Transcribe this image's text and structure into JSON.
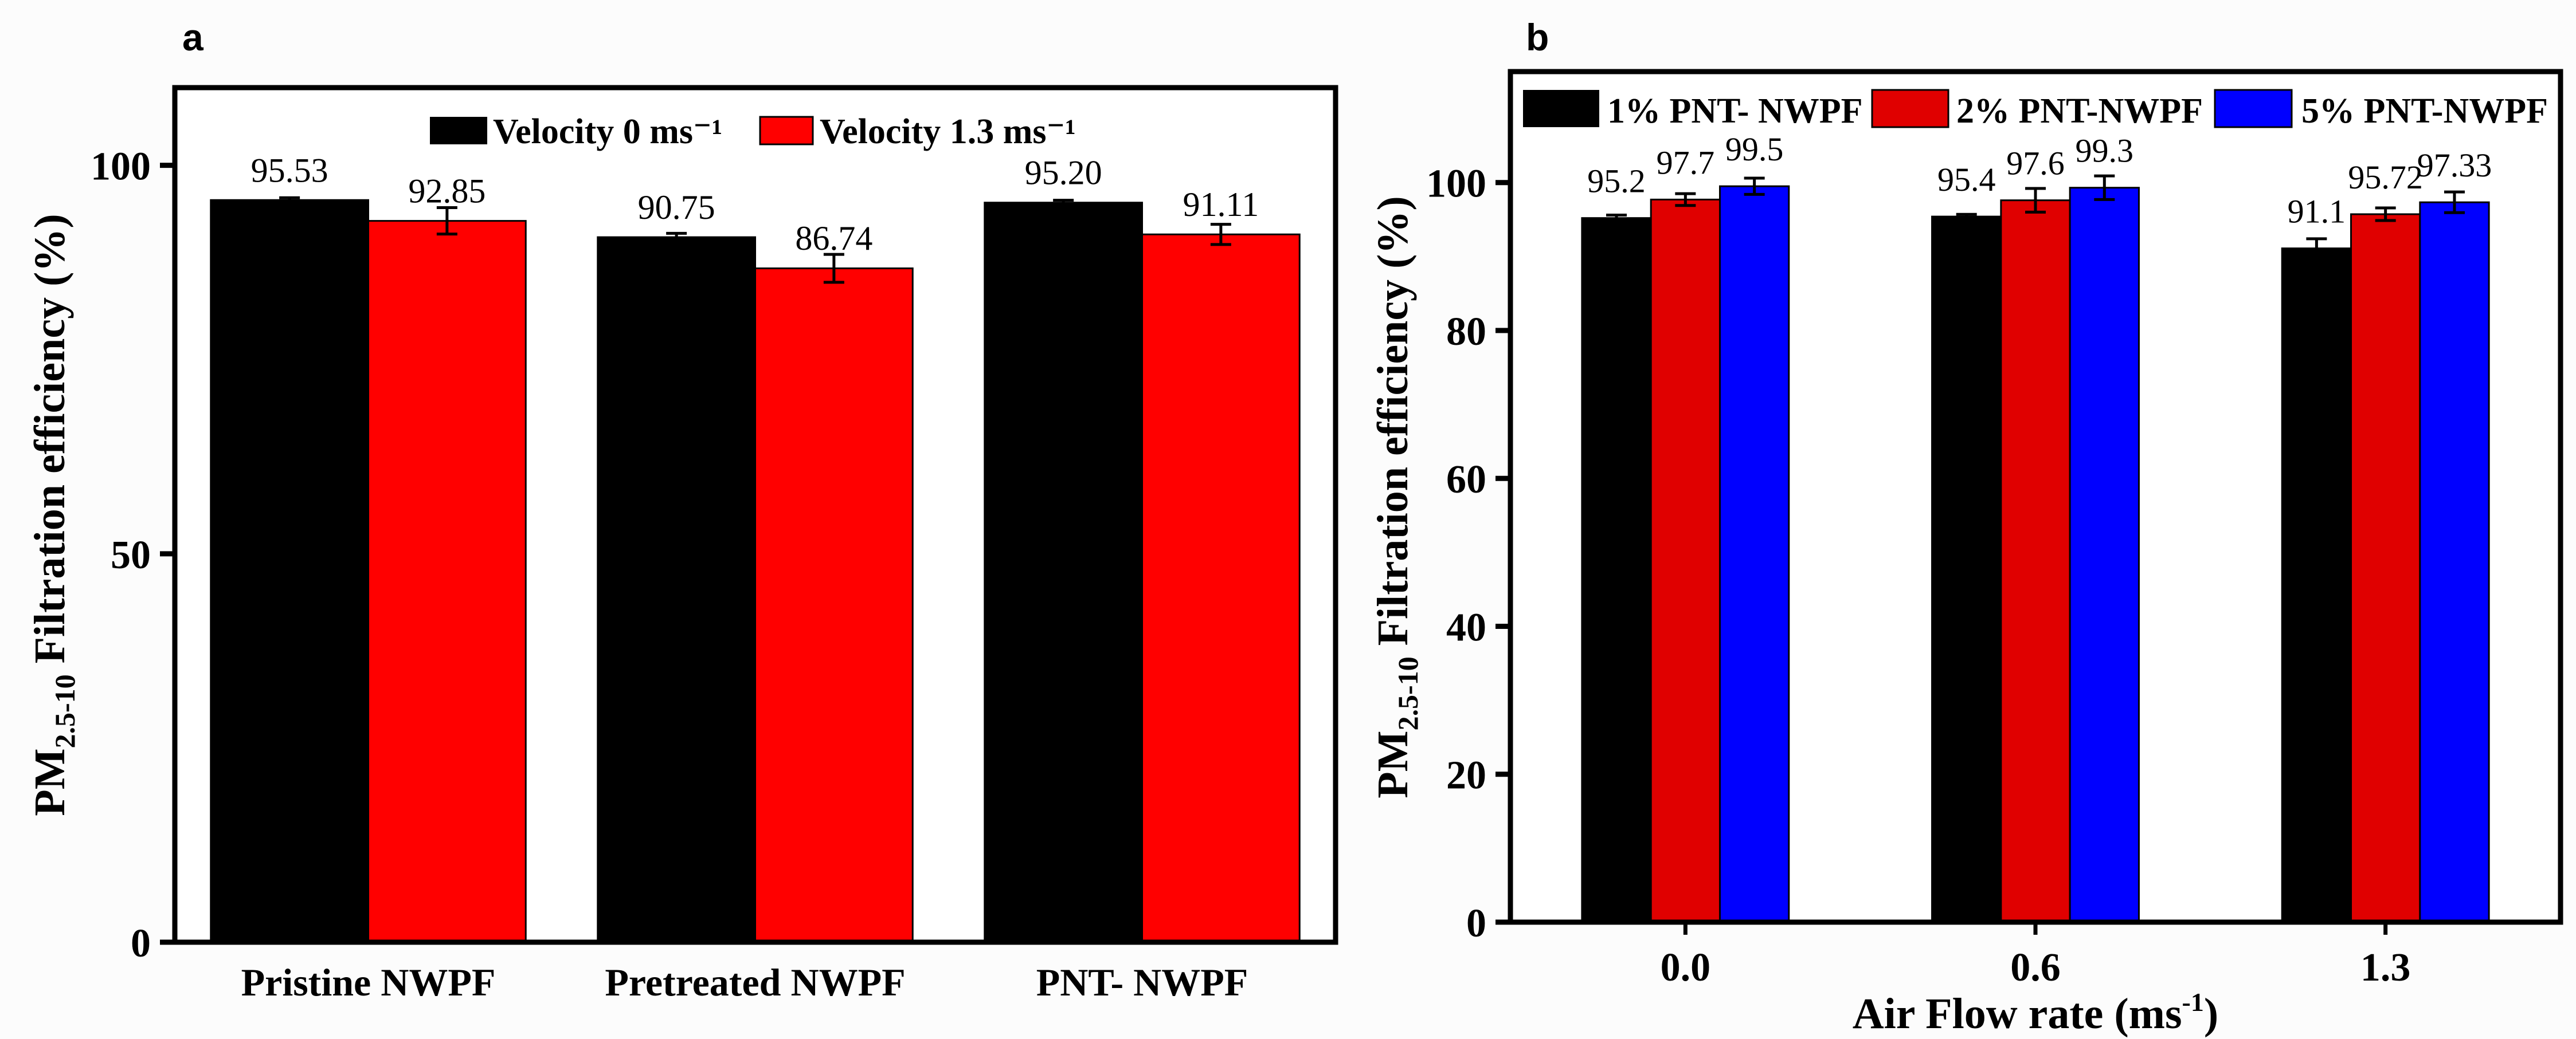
{
  "colors": {
    "black": "#000000",
    "red_a": "#ff0000",
    "red_b": "#e00000",
    "blue": "#0000ff"
  },
  "chart_data": [
    {
      "panel": "a",
      "type": "bar",
      "title": "",
      "xlabel": "",
      "ylabel": {
        "main": "PM",
        "sub": "2.5-10",
        "rest": " Filtration efficiency (%)"
      },
      "ylim": [
        0,
        110
      ],
      "yticks": [
        0,
        50,
        100
      ],
      "grid": false,
      "legend_position": "top-center",
      "categories": [
        "Pristine NWPF",
        "Pretreated NWPF",
        "PNT- NWPF"
      ],
      "series": [
        {
          "name": "Velocity  0 ms⁻¹",
          "color": "#000000",
          "values": [
            95.53,
            90.75,
            95.2
          ],
          "errors": [
            0.3,
            0.5,
            0.3
          ],
          "labels": [
            "95.53",
            "90.75",
            "95.20"
          ]
        },
        {
          "name": "Velocity 1.3 ms⁻¹",
          "color": "#ff0000",
          "values": [
            92.85,
            86.74,
            91.11
          ],
          "errors": [
            1.7,
            1.8,
            1.3
          ],
          "labels": [
            "92.85",
            "86.74",
            "91.11"
          ]
        }
      ]
    },
    {
      "panel": "b",
      "type": "bar",
      "title": "",
      "xlabel": {
        "main": "Air Flow rate (ms",
        "sup": "-1",
        "end": ")"
      },
      "ylabel": {
        "main": "PM",
        "sub": "2.5-10",
        "rest": " Filtration efficiency (%)"
      },
      "ylim": [
        0,
        115
      ],
      "yticks": [
        0,
        20,
        40,
        60,
        80,
        100
      ],
      "grid": false,
      "legend_position": "top",
      "categories": [
        "0.0",
        "0.6",
        "1.3"
      ],
      "series": [
        {
          "name": "1% PNT- NWPF",
          "color": "#000000",
          "values": [
            95.2,
            95.4,
            91.1
          ],
          "errors": [
            0.4,
            0.3,
            1.3
          ],
          "labels": [
            "95.2",
            "95.4",
            "91.1"
          ]
        },
        {
          "name": "2% PNT-NWPF",
          "color": "#e00000",
          "values": [
            97.7,
            97.6,
            95.72
          ],
          "errors": [
            0.8,
            1.6,
            0.85
          ],
          "labels": [
            "97.7",
            "97.6",
            "95.72"
          ]
        },
        {
          "name": "5% PNT-NWPF",
          "color": "#0000ff",
          "values": [
            99.5,
            99.3,
            97.33
          ],
          "errors": [
            1.1,
            1.6,
            1.4
          ],
          "labels": [
            "99.5",
            "99.3",
            "97.33"
          ]
        }
      ]
    }
  ]
}
